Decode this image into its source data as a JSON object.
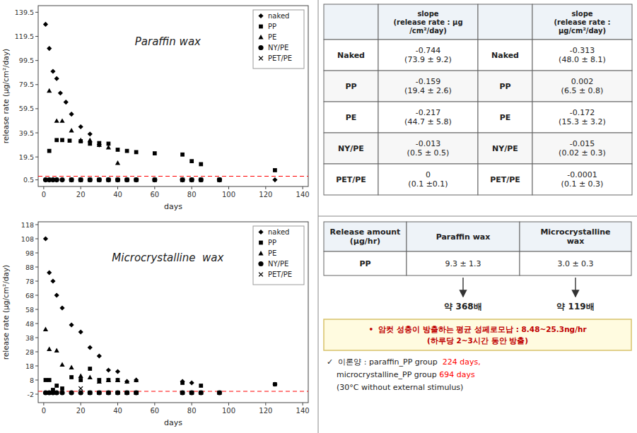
{
  "chart_data": [
    {
      "type": "scatter",
      "title": "Paraffin wax",
      "xlabel": "days",
      "ylabel": "release rate (μg/cm²/day)",
      "xlim": [
        -3,
        143
      ],
      "xticks": [
        0,
        20,
        40,
        60,
        80,
        100,
        120,
        140
      ],
      "ylim": [
        -5,
        145
      ],
      "yticks": [
        0.5,
        19.5,
        39.5,
        59.5,
        79.5,
        99.5,
        119.5,
        139.5
      ],
      "grid": false,
      "legend": "upper right",
      "hline": {
        "value": 3.5,
        "color": "#FF0000",
        "line_style": "dashed"
      },
      "series": [
        {
          "name": "naked",
          "color": "black",
          "marker": "diamond",
          "x": [
            1,
            3,
            5,
            7,
            9,
            12,
            15,
            20,
            25,
            30,
            75,
            80,
            125
          ],
          "values": [
            129.5,
            109.5,
            90.5,
            84.5,
            72.5,
            65.0,
            55.0,
            44.5,
            38.5,
            29.5,
            0.5,
            0.5,
            0.5
          ]
        },
        {
          "name": "PP",
          "color": "black",
          "marker": "square",
          "x": [
            3,
            7,
            10,
            14,
            20,
            25,
            30,
            35,
            40,
            45,
            50,
            60,
            75,
            80,
            85,
            95,
            125
          ],
          "values": [
            24.5,
            33.5,
            33.5,
            33.0,
            32.5,
            30.5,
            31.0,
            30.5,
            25.5,
            24.5,
            23.5,
            22.5,
            21.5,
            16.0,
            13.5,
            0.5,
            8.5
          ]
        },
        {
          "name": "PE",
          "color": "black",
          "marker": "triangle",
          "x": [
            3,
            7,
            10,
            15,
            20,
            25,
            30,
            35,
            40
          ],
          "values": [
            74.5,
            49.5,
            49.5,
            41.5,
            33.5,
            33.5,
            29.5,
            27.5,
            14.5
          ]
        },
        {
          "name": "NY/PE",
          "color": "black",
          "marker": "circle",
          "x": [
            1,
            3,
            5,
            7,
            10,
            15,
            20,
            25,
            30,
            35,
            40,
            45,
            50,
            60,
            75,
            80,
            85,
            95
          ],
          "values": [
            0.5,
            0.5,
            0.5,
            0.5,
            0.5,
            0.5,
            0.5,
            0.5,
            0.5,
            0.5,
            0.5,
            0.5,
            0.5,
            0.5,
            0.5,
            0.5,
            0.5,
            0.5
          ]
        },
        {
          "name": "PET/PE",
          "color": "black",
          "marker": "x",
          "x": [
            15,
            20,
            25,
            30,
            35,
            40,
            45,
            50,
            60,
            75,
            80,
            85,
            95
          ],
          "values": [
            0.5,
            0.5,
            0.5,
            0.5,
            0.5,
            0.5,
            0.5,
            0.5,
            0.5,
            0.5,
            0.5,
            0.5,
            0.5
          ]
        }
      ]
    },
    {
      "type": "scatter",
      "title": "Microcrystalline  wax",
      "xlabel": "days",
      "ylabel": "release rate (μg/cm²/day)",
      "xlim": [
        -3,
        143
      ],
      "xticks": [
        0,
        20,
        40,
        60,
        80,
        100,
        120,
        140
      ],
      "ylim": [
        -8,
        120
      ],
      "yticks": [
        -2,
        8,
        18,
        28,
        38,
        48,
        58,
        68,
        78,
        88,
        98,
        108,
        118
      ],
      "grid": false,
      "legend": "upper right",
      "hline": {
        "value": 0,
        "color": "#FF0000",
        "line_style": "dashed"
      },
      "series": [
        {
          "name": "naked",
          "color": "black",
          "marker": "diamond",
          "x": [
            1,
            3,
            5,
            7,
            10,
            15,
            20,
            25,
            30,
            35,
            40,
            45,
            50,
            75,
            80,
            125
          ],
          "values": [
            108,
            84,
            78,
            68,
            59,
            47,
            42,
            31,
            25,
            15,
            14,
            7,
            8,
            7,
            6,
            5
          ]
        },
        {
          "name": "PP",
          "color": "black",
          "marker": "square",
          "x": [
            1,
            3,
            5,
            7,
            10,
            15,
            20,
            25,
            30,
            35,
            40,
            45,
            50,
            75,
            85,
            125
          ],
          "values": [
            8,
            8,
            1,
            4,
            2,
            10,
            8,
            16,
            8,
            8,
            8,
            -1,
            -1,
            6,
            4,
            5
          ]
        },
        {
          "name": "PE",
          "color": "black",
          "marker": "triangle",
          "x": [
            1,
            3,
            7,
            10,
            15,
            20,
            25,
            30,
            35,
            40,
            45,
            50
          ],
          "values": [
            44,
            30,
            29,
            19,
            17,
            11,
            10,
            7,
            8,
            8,
            7,
            8
          ]
        },
        {
          "name": "NY/PE",
          "color": "black",
          "marker": "circle",
          "x": [
            1,
            3,
            5,
            7,
            10,
            15,
            20,
            25,
            30,
            35,
            40,
            45,
            50,
            75,
            80,
            85,
            95
          ],
          "values": [
            -1,
            -1,
            -1,
            -1,
            -1,
            -1,
            -1,
            -1,
            -1,
            -1,
            -1,
            -1,
            -1,
            -1,
            -1,
            -1,
            -1
          ]
        },
        {
          "name": "PET/PE",
          "color": "black",
          "marker": "x",
          "x": [
            20,
            25,
            30,
            35,
            40,
            45,
            50,
            75,
            80,
            85,
            95
          ],
          "values": [
            2,
            -1,
            -1,
            -1,
            -1,
            -1,
            -1,
            -1,
            -1,
            -1,
            -1
          ]
        }
      ]
    },
    {
      "type": "table",
      "columns": [
        null,
        "slope\n(release rate : μg\n/cm²/day)",
        null,
        "slope\n(release rate :\nμg/cm²/day)"
      ],
      "rows": [
        [
          "Naked",
          "-0.744\n(73.9 ± 9.2)",
          "Naked",
          "-0.313\n(48.0 ± 8.1)"
        ],
        [
          "PP",
          "-0.159\n(19.4 ± 2.6)",
          "PP",
          "0.002\n(6.5 ± 0.8)"
        ],
        [
          "PE",
          "-0.217\n(44.7 ± 5.8)",
          "PE",
          "-0.172\n(15.3 ± 3.2)"
        ],
        [
          "NY/PE",
          "-0.013\n(0.5 ± 0.5)",
          "NY/PE",
          "-0.015\n(0.02 ± 0.3)"
        ],
        [
          "PET/PE",
          "0\n(0.1 ±0.1)",
          "PET/PE",
          "-0.0001\n(0.1 ± 0.3)"
        ]
      ]
    },
    {
      "type": "table",
      "columns": [
        "Release amount\n(μg/hr)",
        "Paraffin wax",
        "Microcrystalline\nwax"
      ],
      "rows": [
        [
          "PP",
          "9.3 ± 1.3",
          "3.0 ± 0.3"
        ]
      ],
      "annotations": [
        "약 368배",
        "약 119배"
      ]
    },
    {
      "type": "text",
      "highlight": {
        "lines": [
          "•  암컷 성충이 방출하는 평균 성페로모납 : 8.48~25.3ng/hr",
          "(하루당 2~3시간 동안 방출)"
        ],
        "color": "#C00000"
      },
      "footnotes": [
        [
          {
            "text": "✓  이론양 : paraffin_PP group  "
          },
          {
            "text": "224 days,",
            "color": "#FF0000"
          }
        ],
        [
          {
            "text": "    microcrystalline_PP group "
          },
          {
            "text": "694 days",
            "color": "#FF0000"
          }
        ],
        [
          {
            "text": "    (30°C without external stimulus)"
          }
        ]
      ]
    }
  ]
}
